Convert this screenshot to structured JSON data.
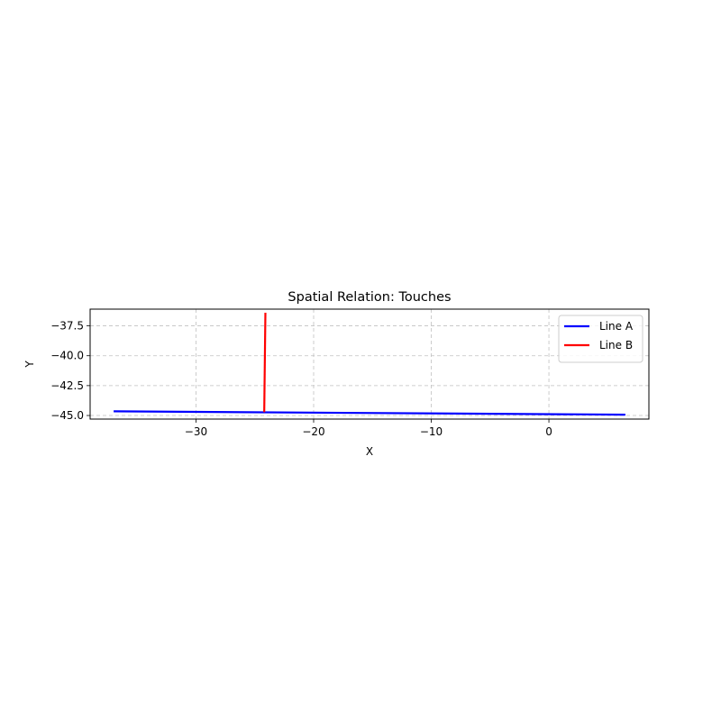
{
  "chart_data": {
    "type": "line",
    "title": "Spatial Relation: Touches",
    "xlabel": "X",
    "ylabel": "Y",
    "xlim": [
      -39.0,
      8.5
    ],
    "ylim": [
      -45.3,
      -36.1
    ],
    "xticks": [
      -30,
      -20,
      -10,
      0
    ],
    "xtick_labels": [
      "−30",
      "−20",
      "−10",
      "0"
    ],
    "yticks": [
      -37.5,
      -40.0,
      -42.5,
      -45.0
    ],
    "ytick_labels": [
      "−37.5",
      "−40.0",
      "−42.5",
      "−45.0"
    ],
    "grid": true,
    "legend_position": "top-right",
    "series": [
      {
        "name": "Line A",
        "color": "#0000ff",
        "x": [
          -37.0,
          6.5
        ],
        "y": [
          -44.65,
          -44.93
        ]
      },
      {
        "name": "Line B",
        "color": "#ff0000",
        "x": [
          -24.2,
          -24.1
        ],
        "y": [
          -44.72,
          -36.4
        ]
      }
    ]
  }
}
